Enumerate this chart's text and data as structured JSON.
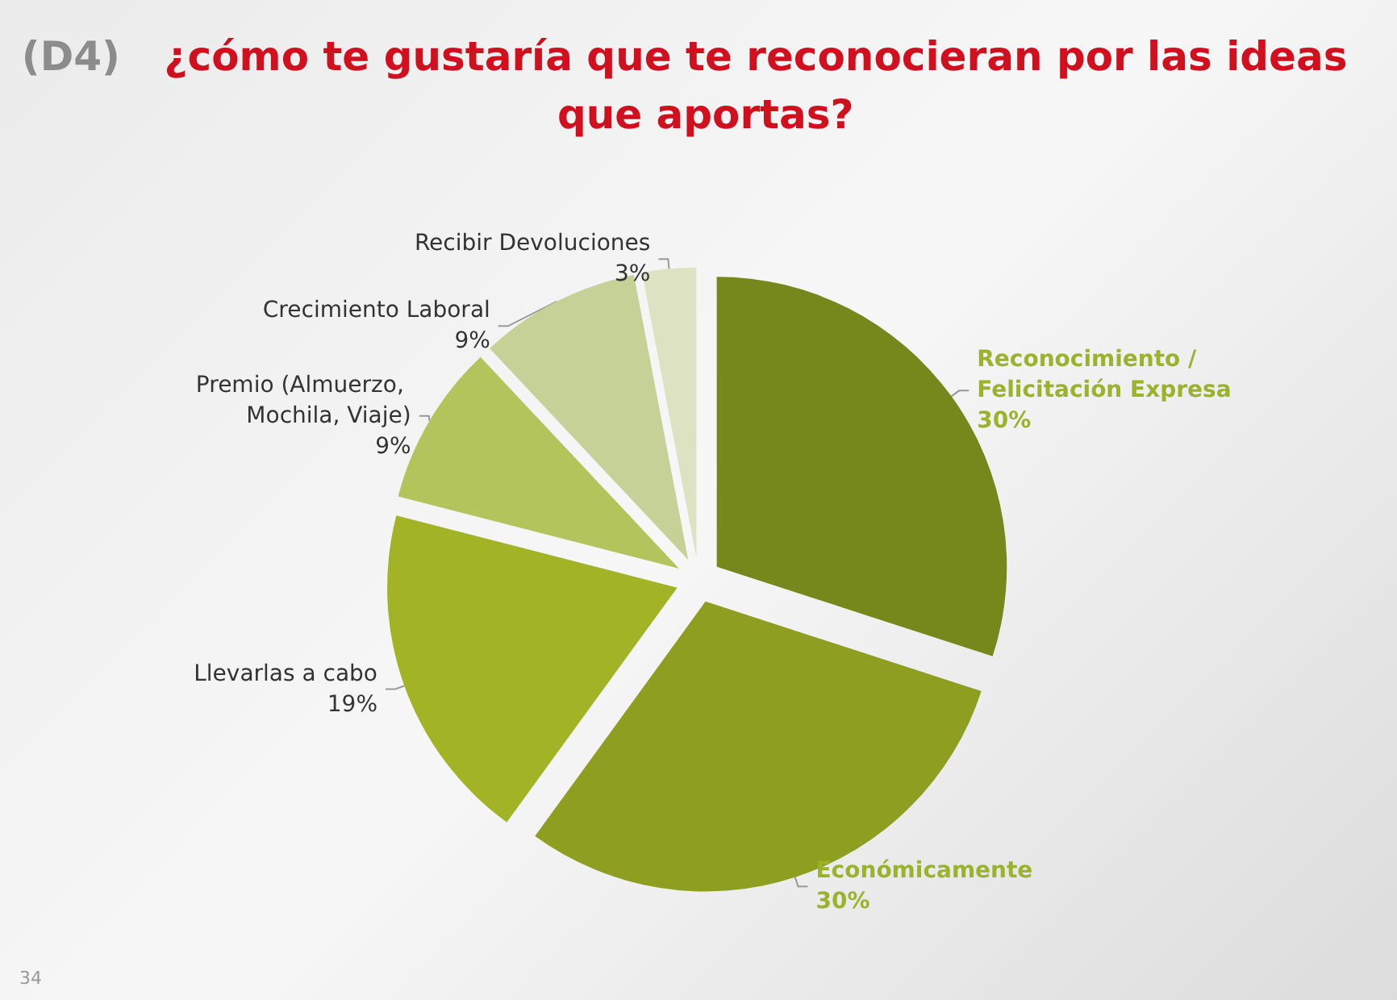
{
  "chart_data": {
    "type": "pie",
    "title": "(D4) ¿cómo te gustaría que te reconocieran por las ideas que aportas?",
    "categories": [
      "Reconocimiento / Felicitación Expresa",
      "Económicamente",
      "Llevarlas a cabo",
      "Premio (Almuerzo, Mochila, Viaje)",
      "Crecimiento Laboral",
      "Recibir Devoluciones"
    ],
    "values": [
      30,
      30,
      19,
      9,
      9,
      3
    ],
    "colors": [
      "#76871b",
      "#8d9e20",
      "#a2b425",
      "#b3c45c",
      "#c6d198",
      "#dde2c2"
    ],
    "value_labels": [
      "30%",
      "30%",
      "19%",
      "9%",
      "9%",
      "3%"
    ],
    "legend": false,
    "annotations": [
      "34"
    ]
  }
}
